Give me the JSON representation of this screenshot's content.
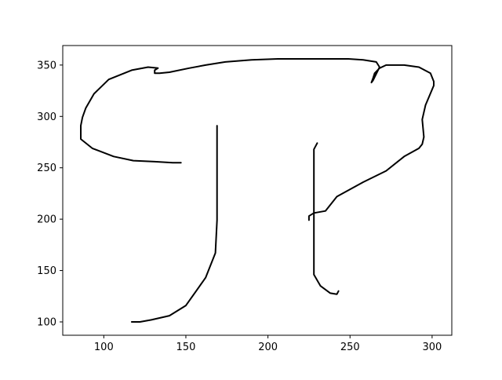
{
  "chart_data": {
    "type": "line",
    "title": "",
    "xlabel": "",
    "ylabel": "",
    "xlim": [
      75,
      312
    ],
    "ylim": [
      87,
      369
    ],
    "grid": false,
    "legend": "none",
    "x_ticks": [
      100,
      150,
      200,
      250,
      300
    ],
    "y_ticks": [
      100,
      150,
      200,
      250,
      300,
      350
    ],
    "series": [
      {
        "color": "#000000",
        "stroke_order": 1,
        "x": [
          147,
          142,
          131,
          118,
          106,
          93,
          86,
          86,
          87,
          89,
          94,
          103,
          117,
          127,
          133,
          131,
          131,
          134,
          140,
          152,
          162,
          174,
          190,
          206,
          220,
          229,
          238,
          249,
          258,
          266,
          268,
          264,
          263,
          264,
          265,
          268,
          272,
          283,
          292,
          299,
          301,
          301,
          296,
          294,
          295,
          294,
          292,
          283,
          272,
          258,
          242,
          235,
          228,
          225,
          225
        ],
        "y": [
          255,
          255,
          256,
          257,
          261,
          269,
          278,
          291,
          299,
          308,
          322,
          336,
          345,
          348,
          347,
          345,
          342,
          342,
          343,
          347,
          350,
          353,
          355,
          356,
          356,
          356,
          356,
          356,
          355,
          353,
          348,
          335,
          333,
          337,
          342,
          347,
          350,
          350,
          348,
          342,
          334,
          330,
          311,
          297,
          280,
          273,
          269,
          261,
          247,
          236,
          222,
          208,
          206,
          203,
          199
        ]
      },
      {
        "color": "#000000",
        "stroke_order": 2,
        "x": [
          169,
          169,
          169,
          168,
          162,
          150,
          140,
          129,
          122,
          117
        ],
        "y": [
          291,
          260,
          199,
          167,
          143,
          116,
          106,
          102,
          100,
          100
        ]
      },
      {
        "color": "#000000",
        "stroke_order": 3,
        "x": [
          230,
          228,
          228,
          228,
          228,
          232,
          238,
          242,
          243
        ],
        "y": [
          274,
          268,
          227,
          197,
          146,
          135,
          128,
          127,
          130
        ]
      }
    ]
  }
}
